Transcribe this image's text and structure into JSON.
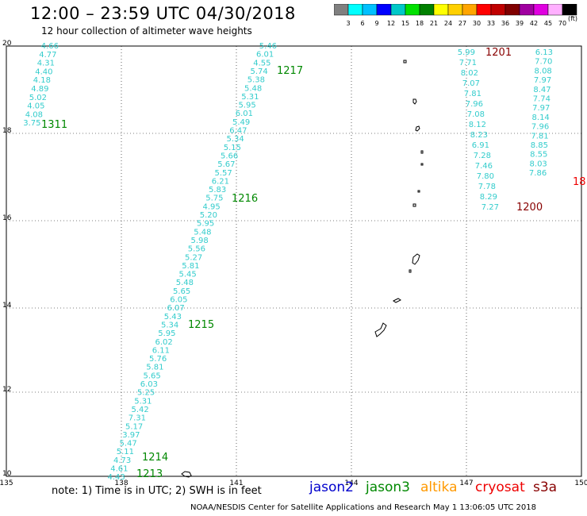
{
  "header": {
    "title": "12:00 – 23:59 UTC 04/30/2018",
    "subtitle": "12 hour collection of altimeter wave heights"
  },
  "colorbar": {
    "labels": [
      "3",
      "6",
      "9",
      "12",
      "15",
      "18",
      "21",
      "24",
      "27",
      "30",
      "33",
      "36",
      "39",
      "42",
      "45",
      "70"
    ],
    "unit": "(ft)",
    "colors": [
      "#808080",
      "#00ffff",
      "#00c0ff",
      "#0000ff",
      "#00c8c8",
      "#00e000",
      "#008000",
      "#ffff00",
      "#ffd000",
      "#ffa500",
      "#ff0000",
      "#c00000",
      "#800000",
      "#a000a0",
      "#e000e0",
      "#ffb0ff",
      "#000000"
    ]
  },
  "axes": {
    "lon_ticks": [
      "135",
      "138",
      "141",
      "144",
      "147",
      "150"
    ],
    "lat_ticks": [
      "20",
      "18",
      "16",
      "14",
      "12",
      "10"
    ]
  },
  "tracks": [
    {
      "id": "track-1311",
      "values": [
        "4.66",
        "4.77",
        "4.31",
        "4.40",
        "4.18",
        "4.89",
        "5.02",
        "4.05",
        "4.08",
        "3.75"
      ]
    },
    {
      "id": "track-1216-1217",
      "values": [
        "5.46",
        "6.01",
        "4.55",
        "5.74",
        "5.38",
        "5.48",
        "5.31",
        "5.95",
        "6.01",
        "5.49",
        "6.47",
        "5.34",
        "5.15",
        "5.66",
        "5.67",
        "5.57",
        "6.21",
        "5.83",
        "5.75",
        "4.95",
        "5.20",
        "5.95",
        "5.48",
        "5.98",
        "5.56",
        "5.27",
        "5.81",
        "5.45",
        "5.48",
        "5.65",
        "6.05",
        "6.07",
        "5.43",
        "5.34",
        "5.95",
        "6.02",
        "6.11",
        "5.76",
        "5.81",
        "5.65",
        "6.03",
        "5.25",
        "5.31",
        "5.42",
        "7.31",
        "5.17",
        "3.97",
        "5.47",
        "5.11",
        "4.73",
        "4.61",
        "4.43"
      ]
    },
    {
      "id": "track-1201",
      "values": [
        "5.99",
        "7.71",
        "8.02",
        "7.07",
        "7.81",
        "7.96",
        "7.08",
        "8.12",
        "8.23",
        "6.91",
        "7.28",
        "7.46",
        "7.80",
        "7.78",
        "8.29",
        "7.27"
      ]
    },
    {
      "id": "track-18",
      "values": [
        "6.13",
        "7.70",
        "8.08",
        "7.97",
        "8.47",
        "7.74",
        "7.97",
        "8.14",
        "7.96",
        "7.81",
        "8.85",
        "8.55",
        "8.03",
        "7.86"
      ]
    }
  ],
  "pass_labels": [
    {
      "text": "1311",
      "satellite": "jason3"
    },
    {
      "text": "1217",
      "satellite": "jason3"
    },
    {
      "text": "1216",
      "satellite": "jason3"
    },
    {
      "text": "1215",
      "satellite": "jason3"
    },
    {
      "text": "1214",
      "satellite": "jason3"
    },
    {
      "text": "1213",
      "satellite": "jason3"
    },
    {
      "text": "1201",
      "satellite": "s3a"
    },
    {
      "text": "1200",
      "satellite": "s3a"
    },
    {
      "text": "18",
      "satellite": "cryosat"
    }
  ],
  "footer": {
    "note": "note: 1) Time is in UTC; 2) SWH is in feet",
    "credit": "NOAA/NESDIS Center for Satellite Applications and Research     May  1 13:06:05 UTC 2018"
  },
  "satellites": [
    {
      "name": "jason2",
      "color": "#0000cc"
    },
    {
      "name": "jason3",
      "color": "#008800"
    },
    {
      "name": "altika",
      "color": "#ff9900"
    },
    {
      "name": "cryosat",
      "color": "#ee0000"
    },
    {
      "name": "s3a",
      "color": "#880000"
    }
  ],
  "colors": {
    "values_text": "#33cccc",
    "jason3": "#008800",
    "s3a": "#880000",
    "cryosat": "#ee0000"
  }
}
